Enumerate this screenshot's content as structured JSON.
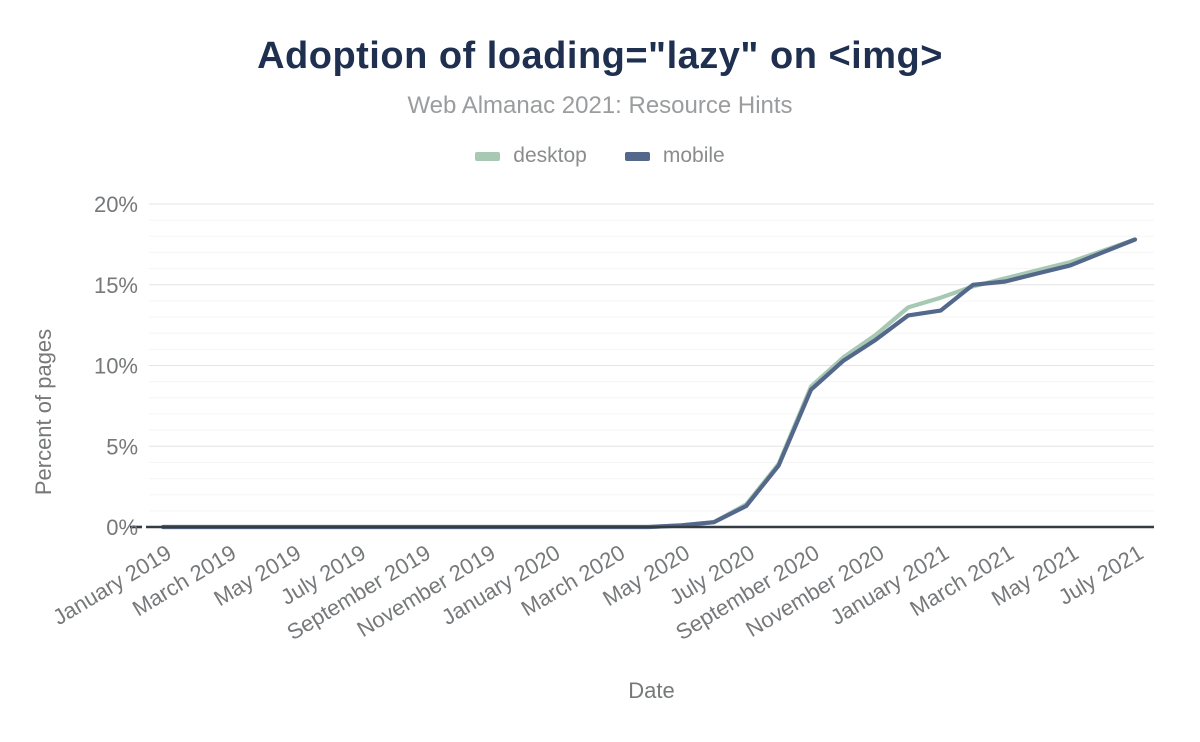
{
  "chart_data": {
    "type": "line",
    "title": "Adoption of loading=\"lazy\" on <img>",
    "subtitle": "Web Almanac 2021: Resource Hints",
    "xlabel": "Date",
    "ylabel": "Percent of pages",
    "ylim": [
      0,
      20
    ],
    "yticks": [
      0,
      5,
      10,
      15,
      20
    ],
    "ytick_suffix": "%",
    "x_ticks_shown_every": 2,
    "grid": "minor 1% / major 5%, horizontal only",
    "legend_position": "top-center",
    "categories": [
      "January 2019",
      "February 2019",
      "March 2019",
      "April 2019",
      "May 2019",
      "June 2019",
      "July 2019",
      "August 2019",
      "September 2019",
      "October 2019",
      "November 2019",
      "December 2019",
      "January 2020",
      "February 2020",
      "March 2020",
      "April 2020",
      "May 2020",
      "June 2020",
      "July 2020",
      "August 2020",
      "September 2020",
      "October 2020",
      "November 2020",
      "December 2020",
      "January 2021",
      "February 2021",
      "March 2021",
      "April 2021",
      "May 2021",
      "June 2021",
      "July 2021"
    ],
    "series": [
      {
        "name": "desktop",
        "color": "#a7c9b4",
        "values": [
          0,
          0,
          0,
          0,
          0,
          0,
          0,
          0,
          0,
          0,
          0,
          0,
          0,
          0,
          0,
          0,
          0.1,
          0.3,
          1.4,
          3.9,
          8.7,
          10.5,
          11.9,
          13.6,
          14.2,
          14.9,
          15.4,
          15.9,
          16.4,
          17.1,
          17.8
        ]
      },
      {
        "name": "mobile",
        "color": "#54688b",
        "values": [
          0,
          0,
          0,
          0,
          0,
          0,
          0,
          0,
          0,
          0,
          0,
          0,
          0,
          0,
          0,
          0,
          0.1,
          0.3,
          1.3,
          3.8,
          8.5,
          10.3,
          11.6,
          13.1,
          13.4,
          15.0,
          15.2,
          15.7,
          16.2,
          17.0,
          17.8
        ]
      }
    ]
  },
  "colors": {
    "title": "#1e2f4f",
    "subtitle": "#9a9c9e",
    "axis_text": "#76787a",
    "legend_text": "#8a8c8e",
    "axis_line": "#333b45",
    "grid_major": "#e4e4e4",
    "grid_minor": "#f5f5f5",
    "background": "#ffffff"
  }
}
